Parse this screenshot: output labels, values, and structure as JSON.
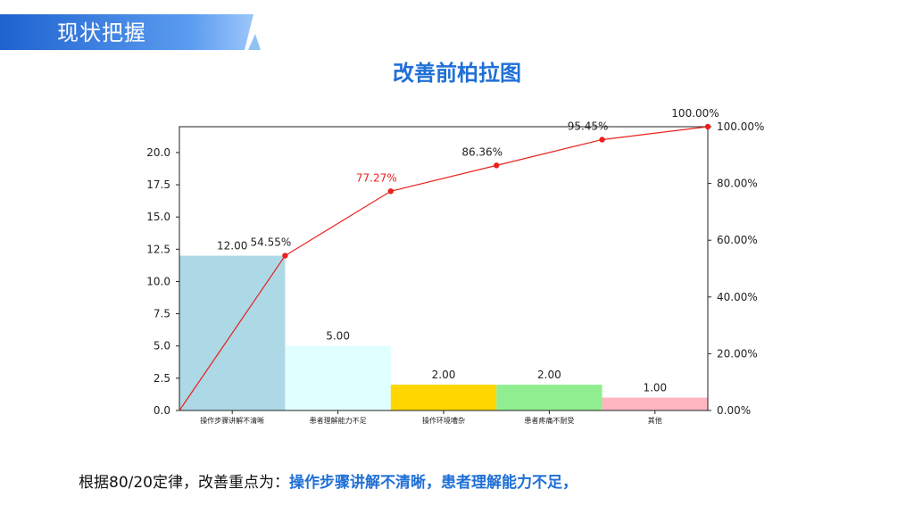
{
  "header": {
    "section_title": "现状把握"
  },
  "chart_title": "改善前柏拉图",
  "footer": {
    "prefix": "根据80/20定律，改善重点为：",
    "emphasis": "操作步骤讲解不清晰，患者理解能力不足，"
  },
  "colors": {
    "banner": "#2a73d9",
    "line": "#e8211b",
    "title": "#1f6fd6"
  },
  "chart_data": {
    "type": "bar",
    "title": "改善前柏拉图",
    "categories": [
      "操作步骤讲解不清晰",
      "患者理解能力不足",
      "操作环境嘈杂",
      "患者疼痛不耐受",
      "其他"
    ],
    "values": [
      12,
      5,
      2,
      2,
      1
    ],
    "value_labels": [
      "12.00",
      "5.00",
      "2.00",
      "2.00",
      "1.00"
    ],
    "bar_colors": [
      "#add8e6",
      "#e0ffff",
      "#ffd700",
      "#90ee90",
      "#ffb6c1"
    ],
    "ylim": [
      0,
      22
    ],
    "y_ticks": [
      0,
      2.5,
      5,
      7.5,
      10,
      12.5,
      15,
      17.5,
      20
    ],
    "y_tick_labels": [
      "0.0",
      "2.5",
      "5.0",
      "7.5",
      "10.0",
      "12.5",
      "15.0",
      "17.5",
      "20.0"
    ],
    "cumulative": {
      "x": [
        0,
        1,
        2,
        3,
        4,
        5
      ],
      "values": [
        0,
        54.55,
        77.27,
        86.36,
        95.45,
        100
      ],
      "labels": [
        "",
        "54.55%",
        "77.27%",
        "86.36%",
        "95.45%",
        "100.00%"
      ],
      "label_colors": [
        "#222222",
        "#222222",
        "#e8211b",
        "#222222",
        "#222222",
        "#222222"
      ]
    },
    "y2lim": [
      0,
      100
    ],
    "y2_ticks": [
      0,
      20,
      40,
      60,
      80,
      100
    ],
    "y2_tick_labels": [
      "0.00%",
      "20.00%",
      "40.00%",
      "60.00%",
      "80.00%",
      "100.00%"
    ],
    "grid": false
  }
}
